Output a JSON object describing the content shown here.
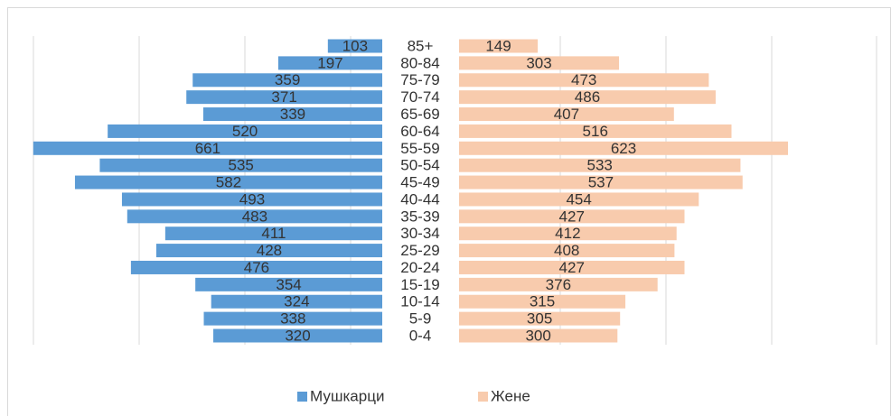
{
  "chart_data": {
    "type": "pyramid",
    "categories": [
      "0-4",
      "5-9",
      "10-14",
      "15-19",
      "20-24",
      "25-29",
      "30-34",
      "35-39",
      "40-44",
      "45-49",
      "50-54",
      "55-59",
      "60-64",
      "65-69",
      "70-74",
      "75-79",
      "80-84",
      "85+"
    ],
    "series": [
      {
        "name": "Мушкарци",
        "color": "#5b9bd5",
        "values": [
          320,
          338,
          324,
          354,
          476,
          428,
          411,
          483,
          493,
          582,
          535,
          661,
          520,
          339,
          371,
          359,
          197,
          103
        ]
      },
      {
        "name": "Жене",
        "color": "#f8cbad",
        "values": [
          300,
          305,
          315,
          376,
          427,
          408,
          412,
          427,
          454,
          537,
          533,
          623,
          516,
          407,
          486,
          473,
          303,
          149
        ]
      }
    ],
    "xlim": [
      0,
      700
    ]
  }
}
